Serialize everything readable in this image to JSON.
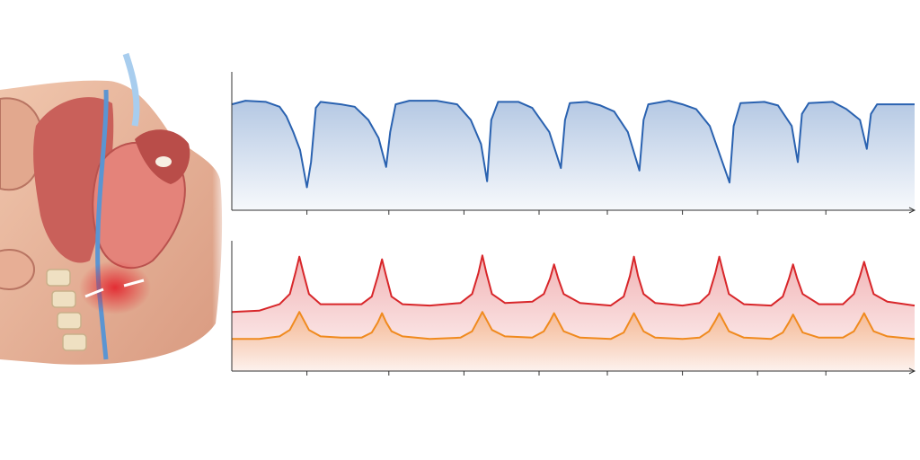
{
  "chart_data": [
    {
      "type": "line",
      "fill": true,
      "xlim": [
        0,
        100
      ],
      "ylim": [
        0,
        100
      ],
      "xticks": [
        11,
        23,
        34,
        45,
        55,
        66,
        77,
        87
      ],
      "x": [
        0,
        2,
        5,
        7,
        8,
        9,
        10,
        11,
        11.6,
        12.3,
        13,
        16,
        18,
        20,
        21.5,
        22.6,
        23.2,
        24,
        26,
        30,
        33,
        35,
        36.5,
        37.4,
        38,
        39,
        42,
        44,
        46.5,
        48.2,
        48.8,
        49.5,
        52,
        54,
        56,
        58,
        59.7,
        60.3,
        61,
        64,
        66,
        68,
        70,
        72.9,
        73.5,
        74.5,
        78,
        80,
        82,
        82.9,
        83.5,
        84.5,
        88,
        90,
        92,
        93,
        93.6,
        94.5,
        100
      ],
      "series": [
        {
          "color": "#2a62b0",
          "values": [
            88,
            91,
            90,
            86,
            78,
            65,
            50,
            19,
            40,
            85,
            90,
            88,
            86,
            75,
            60,
            36,
            65,
            88,
            91,
            91,
            88,
            75,
            55,
            24,
            75,
            90,
            90,
            85,
            65,
            35,
            75,
            89,
            90,
            87,
            82,
            65,
            33,
            75,
            88,
            91,
            88,
            84,
            70,
            23,
            70,
            89,
            90,
            87,
            70,
            40,
            80,
            89,
            90,
            84,
            75,
            51,
            80,
            88,
            88
          ]
        }
      ]
    },
    {
      "type": "line",
      "fill": true,
      "xlim": [
        0,
        100
      ],
      "ylim": [
        0,
        100
      ],
      "xticks": [
        11,
        23,
        34,
        45,
        55,
        66,
        77,
        87
      ],
      "x": [
        0,
        4,
        7,
        8.5,
        9.3,
        9.9,
        10.5,
        11.3,
        13,
        16,
        19,
        20.5,
        21.4,
        22,
        22.6,
        23.4,
        25,
        29,
        33.5,
        35.2,
        36.1,
        36.7,
        37.3,
        38.1,
        40,
        44,
        45.7,
        46.6,
        47.2,
        47.8,
        48.6,
        51,
        55.5,
        57.4,
        58.3,
        58.9,
        59.5,
        60.3,
        62,
        66,
        68.5,
        69.9,
        70.8,
        71.4,
        72,
        72.8,
        75,
        79,
        80.7,
        81.6,
        82.2,
        82.8,
        83.6,
        86,
        89.5,
        91.1,
        92,
        92.6,
        93.2,
        94,
        96,
        100
      ],
      "series": [
        {
          "color": "#d8262a",
          "values": [
            46,
            47,
            52,
            60,
            76,
            89,
            76,
            60,
            52,
            52,
            52,
            58,
            74,
            87,
            74,
            58,
            52,
            51,
            53,
            60,
            76,
            90,
            76,
            60,
            53,
            54,
            60,
            72,
            83,
            72,
            60,
            53,
            51,
            58,
            74,
            89,
            74,
            60,
            53,
            51,
            53,
            60,
            76,
            89,
            76,
            60,
            52,
            51,
            58,
            72,
            83,
            72,
            60,
            52,
            52,
            60,
            74,
            85,
            74,
            60,
            54,
            51
          ]
        },
        {
          "color": "#f08a1e",
          "values": [
            25,
            25,
            27,
            32,
            40,
            46,
            40,
            32,
            27,
            26,
            26,
            30,
            38,
            45,
            38,
            31,
            27,
            25,
            26,
            31,
            40,
            46,
            40,
            32,
            27,
            26,
            31,
            39,
            45,
            39,
            31,
            26,
            25,
            30,
            39,
            45,
            39,
            31,
            26,
            25,
            26,
            31,
            39,
            45,
            39,
            31,
            26,
            25,
            30,
            38,
            44,
            38,
            30,
            26,
            26,
            31,
            39,
            45,
            39,
            31,
            27,
            25
          ]
        }
      ]
    }
  ]
}
